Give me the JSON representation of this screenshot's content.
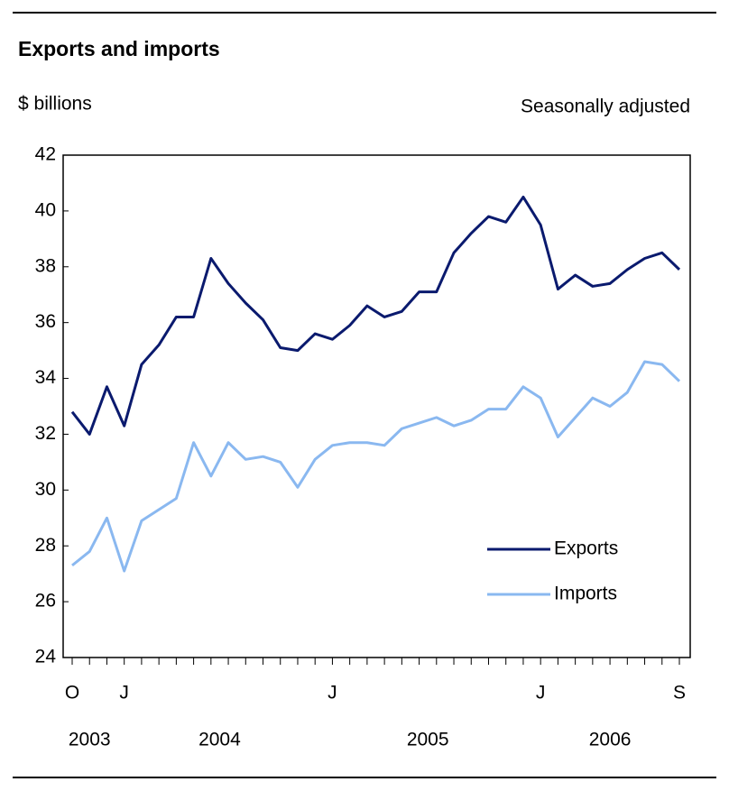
{
  "chart_data": {
    "type": "line",
    "title": "Exports and imports",
    "y_label": "$ billions",
    "note": "Seasonally adjusted",
    "categories": [
      "O",
      null,
      null,
      "J",
      null,
      null,
      null,
      null,
      null,
      null,
      null,
      null,
      null,
      null,
      null,
      "J",
      null,
      null,
      null,
      null,
      null,
      null,
      null,
      null,
      null,
      null,
      null,
      "J",
      null,
      null,
      null,
      null,
      null,
      null,
      null,
      "S"
    ],
    "years": [
      "2003",
      "2004",
      "2005",
      "2006"
    ],
    "series": [
      {
        "name": "Exports",
        "color": "#0a1a6e",
        "values": [
          32.8,
          32.0,
          33.7,
          32.3,
          34.5,
          35.2,
          36.2,
          36.2,
          38.3,
          37.4,
          36.7,
          36.1,
          35.1,
          35.0,
          35.6,
          35.4,
          35.9,
          36.6,
          36.2,
          36.4,
          37.1,
          37.1,
          38.5,
          39.2,
          39.8,
          39.6,
          40.5,
          39.5,
          37.2,
          37.7,
          37.3,
          37.4,
          37.9,
          38.3,
          38.5,
          37.9
        ]
      },
      {
        "name": "Imports",
        "color": "#8ab8f0",
        "values": [
          27.3,
          27.8,
          29.0,
          27.1,
          28.9,
          29.3,
          29.7,
          31.7,
          30.5,
          31.7,
          31.1,
          31.2,
          31.0,
          30.1,
          31.1,
          31.6,
          31.7,
          31.7,
          31.6,
          32.2,
          32.4,
          32.6,
          32.3,
          32.5,
          32.9,
          32.9,
          33.7,
          33.3,
          31.9,
          32.6,
          33.3,
          33.0,
          33.5,
          34.6,
          34.5,
          33.9
        ]
      }
    ],
    "ylim": [
      24,
      42
    ],
    "yticks": [
      24,
      26,
      28,
      30,
      32,
      34,
      36,
      38,
      40,
      42
    ],
    "grid": false,
    "legend": "lower right"
  }
}
